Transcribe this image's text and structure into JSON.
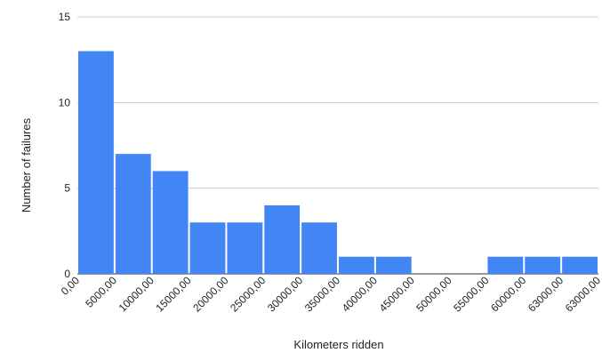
{
  "chart_data": {
    "type": "bar",
    "title": "",
    "xlabel": "Kilometers ridden",
    "ylabel": "Number of failures",
    "ylim": [
      0,
      15
    ],
    "yticks": [
      0,
      5,
      10,
      15
    ],
    "x_tick_labels": [
      "0,00",
      "5000,00",
      "10000,00",
      "15000,00",
      "20000,00",
      "25000,00",
      "30000,00",
      "35000,00",
      "40000,00",
      "45000,00",
      "50000,00",
      "55000,00",
      "60000,00",
      "63000,00",
      "63000,00"
    ],
    "values": [
      13,
      7,
      6,
      3,
      3,
      4,
      3,
      1,
      1,
      0,
      0,
      1,
      1,
      1
    ],
    "grid": true,
    "legend": "none",
    "bar_color": "#4285f4"
  }
}
